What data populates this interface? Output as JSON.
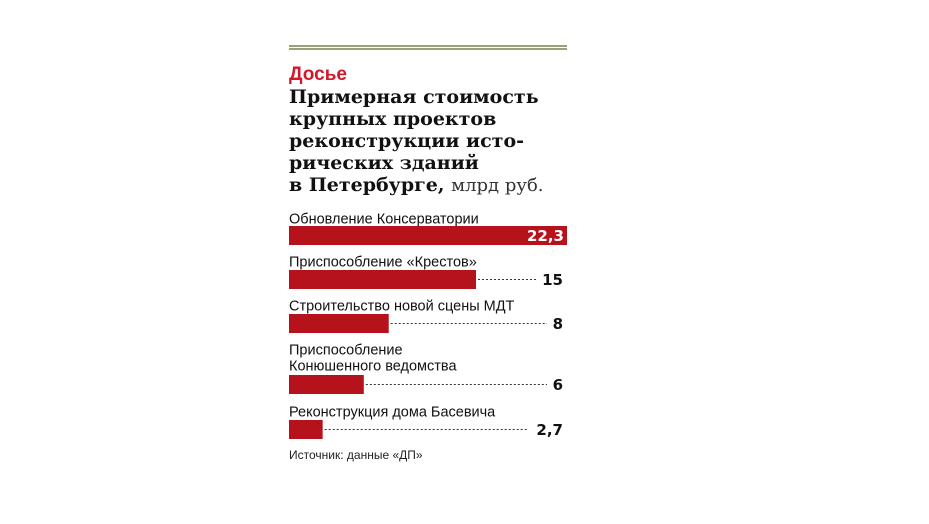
{
  "dossier": {
    "kicker": "Досье",
    "title_lines": [
      "Примерная стоимость",
      "крупных проектов",
      "реконструкции исто-",
      "рических зданий",
      "в Петербурге,"
    ],
    "unit": "млрд руб.",
    "source": "Источник: данные «ДП»"
  },
  "colors": {
    "bar": "#b5121b",
    "rule": "#9aa07a",
    "kicker": "#d3182a",
    "bar_label_inside": "#ffffff"
  },
  "chart_data": {
    "type": "bar",
    "orientation": "horizontal",
    "categories": [
      [
        "Обновление Консерватории"
      ],
      [
        "Приспособление «Крестов»"
      ],
      [
        "Строительство новой сцены МДТ"
      ],
      [
        "Приспособление",
        "Конюшенного ведомства"
      ],
      [
        "Реконструкция дома Басевича"
      ]
    ],
    "values": [
      22.3,
      15,
      8,
      6,
      2.7
    ],
    "value_labels": [
      "22,3",
      "15",
      "8",
      "6",
      "2,7"
    ],
    "xlim": [
      0,
      22.3
    ],
    "unit": "млрд руб.",
    "grid": false
  }
}
